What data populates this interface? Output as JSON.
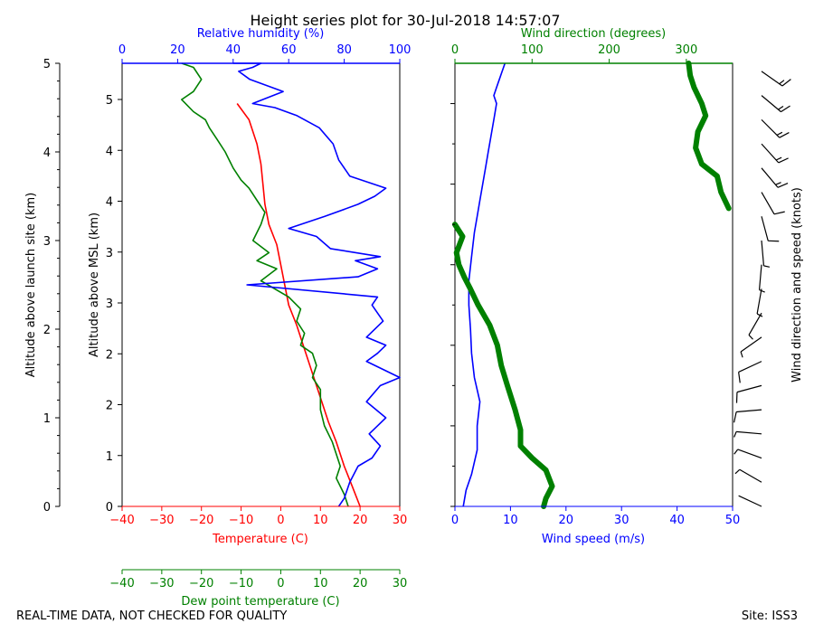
{
  "title": "Height series plot for 30-Jul-2018 14:57:07",
  "footer": {
    "left": "REAL-TIME DATA, NOT CHECKED FOR QUALITY",
    "right": "Site: ISS3"
  },
  "colors": {
    "temperature": "#ff0000",
    "dewpoint": "#008000",
    "humidity": "#0000ff",
    "wind_speed": "#0000ff",
    "wind_direction": "#008000",
    "barbs": "#000000"
  },
  "chart_data": [
    {
      "type": "line",
      "name": "thermo-panel",
      "y_left": {
        "label": "Altitude above launch site (km)",
        "lim": [
          0,
          5
        ],
        "ticks": [
          "0",
          "1",
          "2",
          "3",
          "4",
          "5"
        ]
      },
      "y_inner": {
        "label": "Altitude above MSL (km)",
        "ticks": [
          "0",
          "1",
          "2",
          "2",
          "3",
          "3",
          "4",
          "4",
          "5"
        ]
      },
      "x_bottom": {
        "label": "Temperature (C)",
        "lim": [
          -40,
          30
        ],
        "ticks": [
          "−40",
          "−30",
          "−20",
          "−10",
          "0",
          "10",
          "20",
          "30"
        ]
      },
      "x_bottom2": {
        "label": "Dew point temperature (C)",
        "lim": [
          -40,
          30
        ],
        "ticks": [
          "−40",
          "−30",
          "−20",
          "−10",
          "0",
          "10",
          "20",
          "30"
        ]
      },
      "x_top": {
        "label": "Relative humidity (%)",
        "lim": [
          0,
          100
        ],
        "ticks": [
          "0",
          "20",
          "40",
          "60",
          "80",
          "100"
        ]
      },
      "series": [
        {
          "name": "Temperature",
          "axis": "bottom",
          "x": [
            20,
            18,
            16,
            14,
            12,
            10,
            8,
            6,
            4,
            2,
            1,
            0,
            -1,
            -3,
            -4,
            -4.5,
            -5,
            -6,
            -8,
            -11
          ],
          "y": [
            0,
            0.25,
            0.5,
            0.8,
            1.05,
            1.35,
            1.65,
            1.95,
            2.25,
            2.5,
            2.75,
            3.0,
            3.25,
            3.5,
            3.75,
            4.0,
            4.25,
            4.5,
            4.8,
            5.0
          ]
        },
        {
          "name": "Dew point",
          "axis": "bottom2",
          "x": [
            17,
            16,
            14,
            15,
            14,
            13,
            11,
            10,
            10,
            8,
            9,
            8,
            5,
            6,
            4,
            5,
            2,
            -5,
            -1,
            -6,
            -3,
            -7,
            -5,
            -4,
            -6,
            -8,
            -10,
            -12,
            -14,
            -16,
            -18,
            -19,
            -22,
            -25,
            -22,
            -20,
            -22,
            -25
          ],
          "y": [
            0,
            0.15,
            0.35,
            0.5,
            0.65,
            0.8,
            1.0,
            1.2,
            1.45,
            1.6,
            1.75,
            1.9,
            2.0,
            2.15,
            2.3,
            2.45,
            2.6,
            2.8,
            2.95,
            3.05,
            3.15,
            3.3,
            3.5,
            3.65,
            3.8,
            3.95,
            4.05,
            4.2,
            4.4,
            4.55,
            4.7,
            4.8,
            4.9,
            5.05,
            5.15,
            5.3,
            5.45,
            5.5
          ]
        },
        {
          "name": "Relative humidity",
          "axis": "top",
          "x": [
            78,
            80,
            82,
            85,
            90,
            93,
            89,
            92,
            95,
            88,
            93,
            100,
            88,
            92,
            95,
            88,
            94,
            90,
            92,
            45,
            85,
            92,
            84,
            93,
            75,
            70,
            60,
            73,
            85,
            91,
            95,
            82,
            78,
            76,
            71,
            63,
            55,
            47,
            58,
            50,
            46,
            42,
            47,
            50,
            40
          ],
          "y": [
            0,
            0.1,
            0.3,
            0.5,
            0.6,
            0.75,
            0.9,
            1.0,
            1.1,
            1.3,
            1.5,
            1.6,
            1.8,
            1.9,
            2.0,
            2.1,
            2.3,
            2.5,
            2.6,
            2.75,
            2.85,
            2.95,
            3.05,
            3.1,
            3.2,
            3.35,
            3.45,
            3.6,
            3.75,
            3.85,
            3.95,
            4.1,
            4.3,
            4.5,
            4.7,
            4.85,
            4.95,
            5.0,
            5.15,
            5.25,
            5.3,
            5.4,
            5.45,
            5.5,
            5.5
          ]
        }
      ]
    },
    {
      "type": "line",
      "name": "wind-panel",
      "y_lim": [
        0,
        5
      ],
      "x_bottom": {
        "label": "Wind speed (m/s)",
        "lim": [
          0,
          50
        ],
        "ticks": [
          "0",
          "10",
          "20",
          "30",
          "40",
          "50"
        ]
      },
      "x_top": {
        "label": "Wind direction (degrees)",
        "lim": [
          0,
          360
        ],
        "ticks": [
          "0",
          "100",
          "200",
          "300"
        ]
      },
      "y_right_label": "Wind direction and speed (knots)",
      "series": [
        {
          "name": "Wind speed",
          "axis": "bottom",
          "x": [
            1.5,
            2,
            3,
            4,
            4,
            4.5,
            3.5,
            3,
            2.8,
            2.5,
            2.5,
            3,
            3.5,
            4,
            4.5,
            5,
            5.5,
            6,
            6.5,
            7,
            7.5,
            7,
            7.5,
            8,
            8.5,
            9
          ],
          "y": [
            0,
            0.2,
            0.4,
            0.7,
            1.0,
            1.3,
            1.6,
            1.9,
            2.2,
            2.5,
            2.8,
            3.1,
            3.4,
            3.6,
            3.8,
            4.0,
            4.2,
            4.4,
            4.6,
            4.8,
            5.0,
            5.1,
            5.2,
            5.3,
            5.4,
            5.5
          ]
        },
        {
          "name": "Wind direction",
          "axis": "top",
          "x": [
            115,
            118,
            126,
            118,
            100,
            85,
            85,
            78,
            68,
            60,
            55,
            45,
            30,
            20,
            12,
            5,
            2,
            10,
            0,
            355,
            345,
            340,
            320,
            312,
            315,
            325,
            320,
            310,
            305,
            303
          ],
          "y": [
            0,
            0.1,
            0.25,
            0.45,
            0.6,
            0.75,
            0.95,
            1.2,
            1.5,
            1.75,
            2.0,
            2.25,
            2.5,
            2.7,
            2.85,
            3.0,
            3.15,
            3.35,
            3.5,
            3.7,
            3.9,
            4.1,
            4.25,
            4.45,
            4.65,
            4.85,
            5.0,
            5.2,
            5.35,
            5.5
          ]
        }
      ]
    }
  ],
  "barbs": {
    "y": [
      0,
      0.3,
      0.6,
      0.9,
      1.2,
      1.5,
      1.8,
      2.1,
      2.4,
      2.7,
      3.0,
      3.3,
      3.6,
      3.9,
      4.2,
      4.5,
      4.8,
      5.1,
      5.4
    ],
    "dir": [
      115,
      120,
      110,
      95,
      85,
      75,
      65,
      55,
      30,
      10,
      5,
      355,
      345,
      330,
      320,
      318,
      315,
      310,
      305
    ],
    "spd": [
      3,
      6,
      8,
      9,
      12,
      14,
      10,
      7,
      6,
      5,
      6,
      8,
      10,
      13,
      15,
      17,
      16,
      15,
      18
    ]
  }
}
